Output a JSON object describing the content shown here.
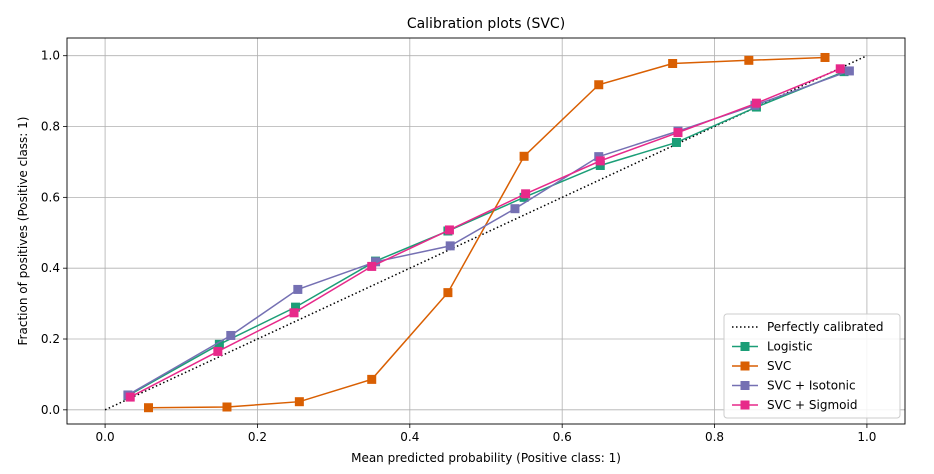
{
  "chart_data": {
    "type": "line",
    "title": "Calibration plots (SVC)",
    "xlabel": "Mean predicted probability (Positive class: 1)",
    "ylabel": "Fraction of positives (Positive class: 1)",
    "xlim": [
      -0.05,
      1.05
    ],
    "ylim": [
      -0.04,
      1.05
    ],
    "xticks": [
      "0.0",
      "0.2",
      "0.4",
      "0.6",
      "0.8",
      "1.0"
    ],
    "yticks": [
      "0.0",
      "0.2",
      "0.4",
      "0.6",
      "0.8",
      "1.0"
    ],
    "grid": true,
    "legend_position": "lower-right",
    "reference": {
      "name": "Perfectly calibrated",
      "x": [
        0,
        1
      ],
      "y": [
        0,
        1
      ],
      "color": "#000000",
      "style": "dotted"
    },
    "series": [
      {
        "name": "Logistic",
        "color": "#1b9e77",
        "x": [
          0.03,
          0.15,
          0.25,
          0.355,
          0.45,
          0.55,
          0.65,
          0.75,
          0.855,
          0.97
        ],
        "y": [
          0.04,
          0.185,
          0.29,
          0.42,
          0.505,
          0.6,
          0.69,
          0.755,
          0.855,
          0.955
        ]
      },
      {
        "name": "SVC",
        "color": "#d95f02",
        "x": [
          0.057,
          0.16,
          0.255,
          0.35,
          0.45,
          0.55,
          0.648,
          0.745,
          0.845,
          0.945
        ],
        "y": [
          0.006,
          0.008,
          0.023,
          0.086,
          0.331,
          0.716,
          0.918,
          0.978,
          0.987,
          0.995
        ]
      },
      {
        "name": "SVC + Isotonic",
        "color": "#7570b3",
        "x": [
          0.03,
          0.165,
          0.253,
          0.355,
          0.453,
          0.538,
          0.648,
          0.752,
          0.853,
          0.977
        ],
        "y": [
          0.042,
          0.21,
          0.34,
          0.418,
          0.463,
          0.568,
          0.715,
          0.787,
          0.86,
          0.957
        ]
      },
      {
        "name": "SVC + Sigmoid",
        "color": "#e7298a",
        "x": [
          0.033,
          0.148,
          0.248,
          0.35,
          0.452,
          0.552,
          0.65,
          0.752,
          0.855,
          0.965
        ],
        "y": [
          0.036,
          0.165,
          0.274,
          0.405,
          0.508,
          0.61,
          0.703,
          0.783,
          0.866,
          0.963
        ]
      }
    ]
  }
}
